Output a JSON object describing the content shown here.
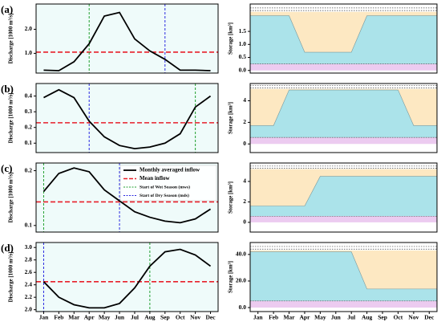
{
  "chart_data": [
    {
      "type": "line",
      "panel_label": "(a)",
      "ylabel": "Discharge [1000 m³/s]",
      "xlim": [
        -0.5,
        11.5
      ],
      "ylim": [
        0.18,
        3.05
      ],
      "yticks": [
        {
          "value": 1,
          "label": "1.0"
        },
        {
          "value": 2,
          "label": "2.0"
        }
      ],
      "values": [
        0.3,
        0.28,
        0.65,
        1.4,
        2.55,
        2.7,
        1.6,
        1.1,
        0.75,
        0.3,
        0.3,
        0.28
      ],
      "color": "#000000",
      "mean": 1.05,
      "mean_color": "#e8202a",
      "wet_start": 3,
      "wet_color": "#22a030",
      "dry_start": 8,
      "dry_color": "#2a2ae0"
    },
    {
      "type": "area",
      "ylabel": "Storage [km³]",
      "xlim": [
        -0.5,
        11.5
      ],
      "ylim": [
        -0.1,
        2.55
      ],
      "yticks": [
        {
          "value": 0,
          "label": "0.0"
        },
        0.5,
        {
          "value": 1,
          "label": "1.0"
        },
        1.5
      ],
      "values": [
        2.1,
        2.1,
        2.1,
        0.7,
        0.7,
        0.7,
        0.7,
        2.1,
        2.1,
        2.1,
        2.1,
        2.1
      ],
      "color": "#abe3ea",
      "capacity": 2.25,
      "capacity_color": "#fde8c2",
      "dead_storage": 0.25,
      "dead_color": "#eccbf0",
      "hlines": [
        2.3,
        2.4
      ]
    },
    {
      "type": "line",
      "panel_label": "(b)",
      "ylabel": "Discharge [1000 m³/s]",
      "xlim": [
        -0.5,
        11.5
      ],
      "ylim": [
        0.04,
        0.48
      ],
      "yticks": [
        0.1,
        0.2,
        0.3,
        0.4
      ],
      "values": [
        0.39,
        0.44,
        0.39,
        0.24,
        0.14,
        0.085,
        0.065,
        0.075,
        0.1,
        0.16,
        0.33,
        0.4
      ],
      "color": "#000000",
      "mean": 0.23,
      "mean_color": "#e8202a",
      "wet_start": 10,
      "wet_color": "#22a030",
      "dry_start": 3,
      "dry_color": "#2a2ae0"
    },
    {
      "type": "area",
      "ylabel": "Storage [km³]",
      "xlim": [
        -0.5,
        11.5
      ],
      "ylim": [
        -0.8,
        5.6
      ],
      "yticks": [
        0,
        2,
        4
      ],
      "values": [
        1.7,
        1.7,
        5.0,
        5.0,
        5.0,
        5.0,
        5.0,
        5.0,
        5.0,
        5.0,
        1.7,
        1.7
      ],
      "color": "#abe3ea",
      "capacity": 5.1,
      "capacity_color": "#fde8c2",
      "dead_storage": 0.6,
      "dead_color": "#eccbf0",
      "hlines": [
        5.2,
        5.4
      ]
    },
    {
      "type": "line",
      "panel_label": "(c)",
      "ylabel": "Discharge [1000 m³/s]",
      "xlim": [
        -0.5,
        11.5
      ],
      "ylim": [
        0.088,
        0.214
      ],
      "yticks": [
        0.1,
        0.2
      ],
      "values": [
        0.162,
        0.195,
        0.205,
        0.198,
        0.165,
        0.145,
        0.125,
        0.115,
        0.108,
        0.105,
        0.112,
        0.13
      ],
      "color": "#000000",
      "mean": 0.143,
      "mean_color": "#e8202a",
      "wet_start": 0,
      "wet_color": "#22a030",
      "dry_start": 5,
      "dry_color": "#2a2ae0",
      "legend": {
        "values": "Monthly averaged inflow",
        "mean": "Mean inflow",
        "wet_start": "Start of Wet Season (mws)",
        "dry_start": "Start of Dry Season (mds)"
      }
    },
    {
      "type": "area",
      "ylabel": "Storage [km³]",
      "xlim": [
        -0.5,
        11.5
      ],
      "ylim": [
        -0.95,
        5.8
      ],
      "yticks": [
        0,
        2,
        4
      ],
      "values": [
        1.6,
        1.6,
        1.6,
        1.6,
        4.5,
        4.5,
        4.5,
        4.5,
        4.5,
        4.5,
        4.5,
        4.5
      ],
      "color": "#abe3ea",
      "capacity": 5.2,
      "capacity_color": "#fde8c2",
      "dead_storage": 0.6,
      "dead_color": "#eccbf0",
      "hlines": [
        5.3,
        5.5
      ]
    },
    {
      "type": "line",
      "panel_label": "(d)",
      "ylabel": "Discharge [1000 m³/s]",
      "xlim": [
        -0.5,
        11.5
      ],
      "ylim": [
        1.97,
        3.08
      ],
      "yticks": [
        {
          "value": 2,
          "label": "2.0"
        },
        2.2,
        2.4,
        2.6,
        2.8,
        {
          "value": 3,
          "label": "3.0"
        }
      ],
      "categories": [
        "Jan",
        "Feb",
        "Mar",
        "Apr",
        "May",
        "Jun",
        "Jul",
        "Aug",
        "Sep",
        "Oct",
        "Nov",
        "Dec"
      ],
      "values": [
        2.45,
        2.2,
        2.08,
        2.03,
        2.03,
        2.1,
        2.35,
        2.7,
        2.93,
        2.97,
        2.88,
        2.7
      ],
      "color": "#000000",
      "mean": 2.45,
      "mean_color": "#e8202a",
      "wet_start": 7,
      "wet_color": "#22a030",
      "dry_start": 0,
      "dry_color": "#2a2ae0"
    },
    {
      "type": "area",
      "ylabel": "Storage [km³]",
      "xlim": [
        -0.5,
        11.5
      ],
      "ylim": [
        -3,
        49
      ],
      "yticks": [
        {
          "value": 0,
          "label": "0.0"
        },
        {
          "value": 20,
          "label": "20.0"
        },
        {
          "value": 40,
          "label": "40.0"
        }
      ],
      "categories": [
        "Jan",
        "Feb",
        "Mar",
        "Apr",
        "May",
        "Jun",
        "Jul",
        "Aug",
        "Sep",
        "Oct",
        "Nov",
        "Dec"
      ],
      "values": [
        42,
        42,
        42,
        42,
        42,
        42,
        42,
        14,
        14,
        14,
        14,
        14
      ],
      "color": "#abe3ea",
      "capacity": 43,
      "capacity_color": "#fde8c2",
      "dead_storage": 5,
      "dead_color": "#eccbf0",
      "hlines": [
        44,
        46
      ]
    }
  ]
}
